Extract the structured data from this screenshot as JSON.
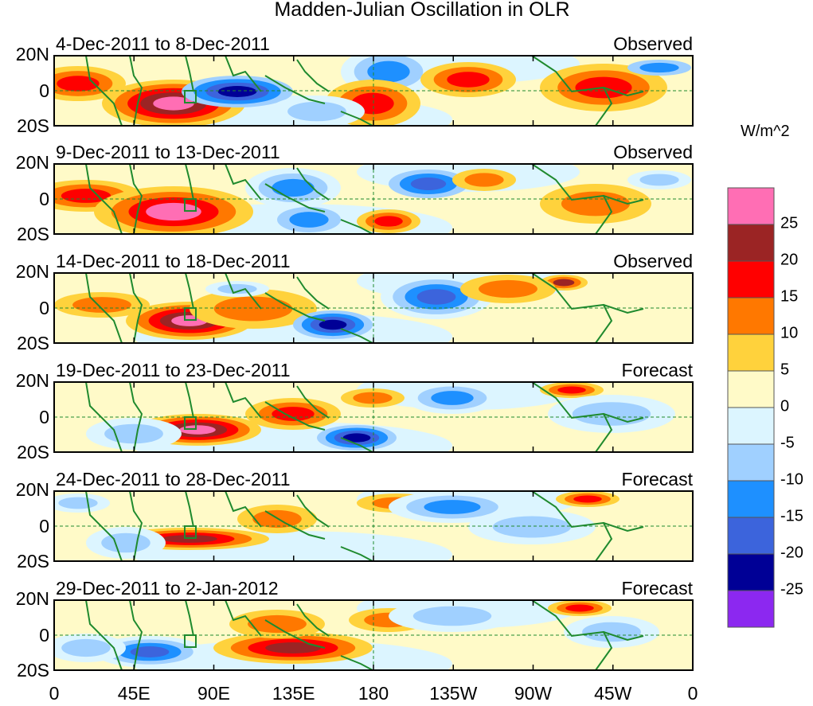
{
  "title": "Madden-Julian Oscillation in OLR",
  "units": "W/m^2",
  "panels": [
    {
      "dates": "4-Dec-2011 to 8-Dec-2011",
      "kind": "Observed"
    },
    {
      "dates": "9-Dec-2011 to 13-Dec-2011",
      "kind": "Observed"
    },
    {
      "dates": "14-Dec-2011 to 18-Dec-2011",
      "kind": "Observed"
    },
    {
      "dates": "19-Dec-2011 to 23-Dec-2011",
      "kind": "Forecast"
    },
    {
      "dates": "24-Dec-2011 to 28-Dec-2011",
      "kind": "Forecast"
    },
    {
      "dates": "29-Dec-2011 to 2-Jan-2012",
      "kind": "Forecast"
    }
  ],
  "lat_labels": [
    "20N",
    "0",
    "20S"
  ],
  "lon_labels": [
    "0",
    "45E",
    "90E",
    "135E",
    "180",
    "135W",
    "90W",
    "45W",
    "0"
  ],
  "colorbar": {
    "labels": [
      "25",
      "20",
      "15",
      "10",
      "5",
      "0",
      "-5",
      "-10",
      "-15",
      "-20",
      "-25"
    ],
    "colors": [
      "#ff6eb4",
      "#9b2424",
      "#ff0000",
      "#ff7800",
      "#ffd23c",
      "#fffac8",
      "#dcf5ff",
      "#a0d0ff",
      "#1e90ff",
      "#3c64dc",
      "#000096",
      "#8c28f0"
    ]
  },
  "colors": {
    "coast": "#1f8a2e",
    "frame": "#000000"
  }
}
